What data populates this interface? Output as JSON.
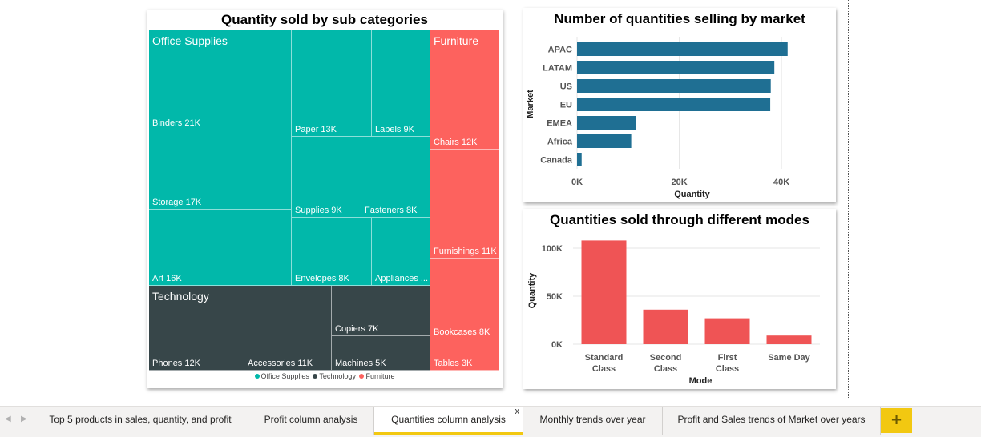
{
  "treemap": {
    "title": "Quantity sold by sub categories",
    "groups": {
      "office_supplies": "Office Supplies",
      "technology": "Technology",
      "furniture": "Furniture"
    },
    "cells": {
      "binders": "Binders 21K",
      "storage": "Storage 17K",
      "art": "Art 16K",
      "paper": "Paper 13K",
      "labels": "Labels 9K",
      "supplies": "Supplies 9K",
      "fasteners": "Fasteners 8K",
      "envelopes": "Envelopes 8K",
      "appliances": "Appliances ...",
      "phones": "Phones 12K",
      "accessories": "Accessories 11K",
      "copiers": "Copiers 7K",
      "machines": "Machines 5K",
      "chairs": "Chairs 12K",
      "furnishings": "Furnishings 11K",
      "bookcases": "Bookcases 8K",
      "tables": "Tables 3K"
    },
    "legend": [
      "Office Supplies",
      "Technology",
      "Furniture"
    ],
    "colors": {
      "office_supplies": "#01b8aa",
      "technology": "#374649",
      "furniture": "#fd625e"
    }
  },
  "chart_data": [
    {
      "type": "treemap",
      "title": "Quantity sold by sub categories",
      "groups": [
        {
          "name": "Office Supplies",
          "items": [
            {
              "label": "Binders",
              "value": 21000
            },
            {
              "label": "Storage",
              "value": 17000
            },
            {
              "label": "Art",
              "value": 16000
            },
            {
              "label": "Paper",
              "value": 13000
            },
            {
              "label": "Labels",
              "value": 9000
            },
            {
              "label": "Supplies",
              "value": 9000
            },
            {
              "label": "Fasteners",
              "value": 8000
            },
            {
              "label": "Envelopes",
              "value": 8000
            },
            {
              "label": "Appliances",
              "value": 7000
            }
          ]
        },
        {
          "name": "Technology",
          "items": [
            {
              "label": "Phones",
              "value": 12000
            },
            {
              "label": "Accessories",
              "value": 11000
            },
            {
              "label": "Copiers",
              "value": 7000
            },
            {
              "label": "Machines",
              "value": 5000
            }
          ]
        },
        {
          "name": "Furniture",
          "items": [
            {
              "label": "Chairs",
              "value": 12000
            },
            {
              "label": "Furnishings",
              "value": 11000
            },
            {
              "label": "Bookcases",
              "value": 8000
            },
            {
              "label": "Tables",
              "value": 3000
            }
          ]
        }
      ]
    },
    {
      "type": "bar",
      "orientation": "horizontal",
      "title": "Number of quantities selling by market",
      "categories": [
        "APAC",
        "LATAM",
        "US",
        "EU",
        "EMEA",
        "Africa",
        "Canada"
      ],
      "values": [
        41200,
        38600,
        37900,
        37800,
        11500,
        10600,
        900
      ],
      "xlabel": "Quantity",
      "ylabel": "Market",
      "xlim": [
        0,
        45000
      ],
      "xticks": [
        0,
        20000,
        40000
      ],
      "xtick_labels": [
        "0K",
        "20K",
        "40K"
      ],
      "grid": true,
      "color": "#1f6f93"
    },
    {
      "type": "bar",
      "orientation": "vertical",
      "title": "Quantities sold through different modes",
      "categories": [
        "Standard Class",
        "Second Class",
        "First Class",
        "Same Day"
      ],
      "values": [
        108000,
        36000,
        27000,
        9000
      ],
      "xlabel": "Mode",
      "ylabel": "Quantity",
      "ylim": [
        0,
        110000
      ],
      "yticks": [
        0,
        50000,
        100000
      ],
      "ytick_labels": [
        "0K",
        "50K",
        "100K"
      ],
      "grid": true,
      "color": "#ef5455"
    }
  ],
  "tabs": [
    {
      "label": "Top 5 products in sales, quantity, and profit",
      "active": false
    },
    {
      "label": "Profit column analysis",
      "active": false
    },
    {
      "label": "Quantities column analysis",
      "active": true
    },
    {
      "label": "Monthly trends over year",
      "active": false
    },
    {
      "label": "Profit and Sales trends of Market over years",
      "active": false
    }
  ],
  "tab_close_symbol": "x",
  "add_page_symbol": "+",
  "nav": {
    "prev": "◀",
    "next": "▶"
  }
}
